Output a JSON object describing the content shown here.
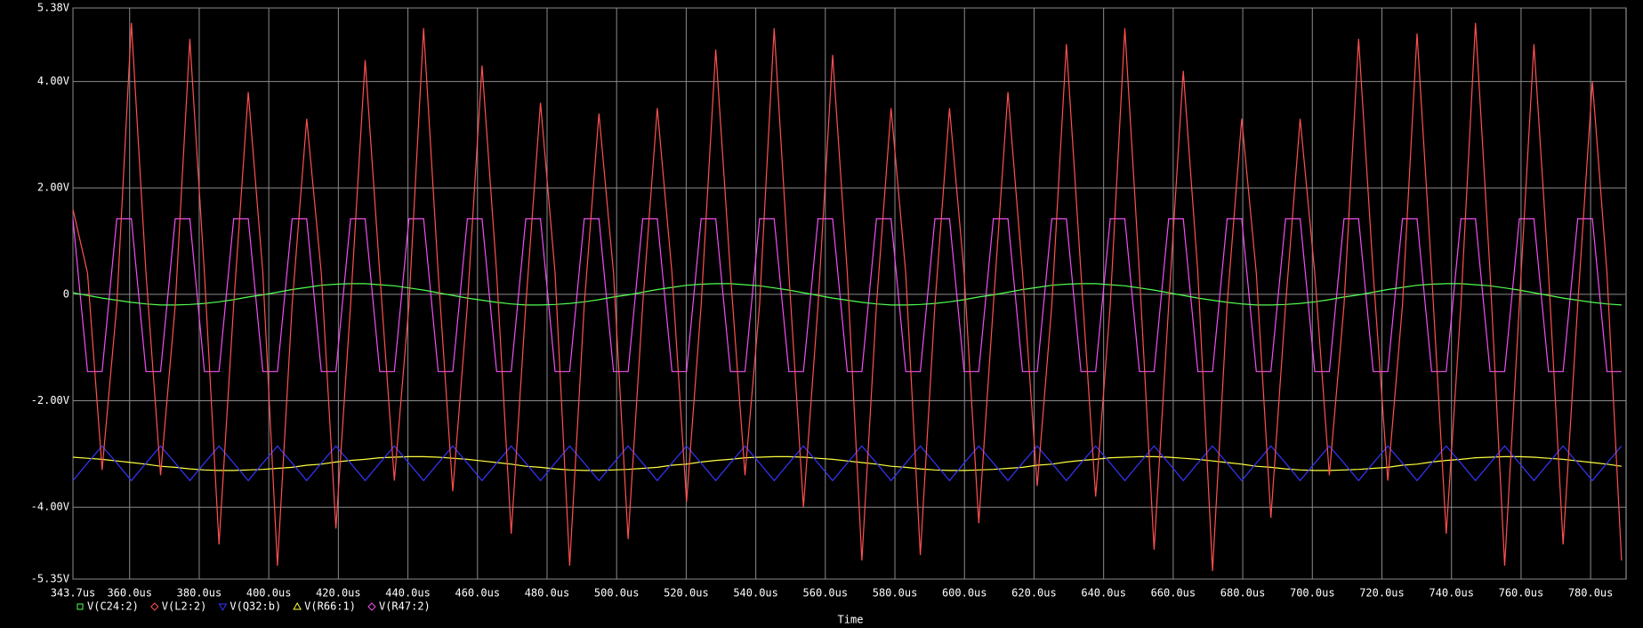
{
  "chart_data": {
    "type": "line",
    "x_label": "Time",
    "xlim": [
      343.7,
      790.2
    ],
    "ylim": [
      -5.35,
      5.38
    ],
    "xticks": [
      {
        "value": 343.7,
        "label": "343.7us"
      },
      {
        "value": 360,
        "label": "360.0us"
      },
      {
        "value": 380,
        "label": "380.0us"
      },
      {
        "value": 400,
        "label": "400.0us"
      },
      {
        "value": 420,
        "label": "420.0us"
      },
      {
        "value": 440,
        "label": "440.0us"
      },
      {
        "value": 460,
        "label": "460.0us"
      },
      {
        "value": 480,
        "label": "480.0us"
      },
      {
        "value": 500,
        "label": "500.0us"
      },
      {
        "value": 520,
        "label": "520.0us"
      },
      {
        "value": 540,
        "label": "540.0us"
      },
      {
        "value": 560,
        "label": "560.0us"
      },
      {
        "value": 580,
        "label": "580.0us"
      },
      {
        "value": 600,
        "label": "600.0us"
      },
      {
        "value": 620,
        "label": "620.0us"
      },
      {
        "value": 640,
        "label": "640.0us"
      },
      {
        "value": 660,
        "label": "660.0us"
      },
      {
        "value": 680,
        "label": "680.0us"
      },
      {
        "value": 700,
        "label": "700.0us"
      },
      {
        "value": 720,
        "label": "720.0us"
      },
      {
        "value": 740,
        "label": "740.0us"
      },
      {
        "value": 760,
        "label": "760.0us"
      },
      {
        "value": 780,
        "label": "780.0us"
      }
    ],
    "yticks": [
      {
        "value": 5.38,
        "label": "5.38V"
      },
      {
        "value": 4,
        "label": "4.00V"
      },
      {
        "value": 2,
        "label": "2.00V"
      },
      0,
      {
        "value": -2,
        "label": "-2.00V"
      },
      {
        "value": -4,
        "label": "-4.00V"
      },
      {
        "value": -5.35,
        "label": "-5.35V"
      }
    ],
    "grid": true,
    "x": [
      343.7,
      347.9,
      352.1,
      356.3,
      360.5,
      364.7,
      368.9,
      373.1,
      377.3,
      381.5,
      385.7,
      389.9,
      394.1,
      398.3,
      402.5,
      406.7,
      410.9,
      415.1,
      419.3,
      423.5,
      427.7,
      431.9,
      436.1,
      440.3,
      444.5,
      448.7,
      452.9,
      457.1,
      461.3,
      465.5,
      469.7,
      473.9,
      478.1,
      482.3,
      486.5,
      490.7,
      494.9,
      499.1,
      503.3,
      507.5,
      511.7,
      515.9,
      520.1,
      524.3,
      528.5,
      532.7,
      536.9,
      541.1,
      545.3,
      549.5,
      553.7,
      557.9,
      562.1,
      566.3,
      570.5,
      574.7,
      578.9,
      583.1,
      587.3,
      591.5,
      595.7,
      599.9,
      604.1,
      608.3,
      612.5,
      616.7,
      620.9,
      625.1,
      629.3,
      633.5,
      637.7,
      641.9,
      646.1,
      650.3,
      654.5,
      658.7,
      662.9,
      667.1,
      671.3,
      675.5,
      679.7,
      683.9,
      688.1,
      692.3,
      696.5,
      700.7,
      704.9,
      709.1,
      713.3,
      717.5,
      721.7,
      725.9,
      730.1,
      734.3,
      738.5,
      742.7,
      746.9,
      751.1,
      755.3,
      759.5,
      763.7,
      767.9,
      772.1,
      776.3,
      780.5,
      784.7,
      788.9
    ],
    "series": [
      {
        "name": "V(C24:2)",
        "color": "#50ff50",
        "values": [
          0.03,
          -0.02,
          -0.07,
          -0.11,
          -0.15,
          -0.18,
          -0.2,
          -0.2,
          -0.19,
          -0.17,
          -0.14,
          -0.1,
          -0.05,
          -0.01,
          0.04,
          0.09,
          0.13,
          0.17,
          0.19,
          0.2,
          0.2,
          0.18,
          0.16,
          0.12,
          0.08,
          0.03,
          -0.02,
          -0.07,
          -0.11,
          -0.15,
          -0.18,
          -0.2,
          -0.2,
          -0.19,
          -0.17,
          -0.14,
          -0.1,
          -0.05,
          -0.01,
          0.04,
          0.09,
          0.13,
          0.17,
          0.19,
          0.2,
          0.2,
          0.18,
          0.16,
          0.12,
          0.08,
          0.03,
          -0.02,
          -0.07,
          -0.11,
          -0.15,
          -0.18,
          -0.2,
          -0.2,
          -0.19,
          -0.17,
          -0.14,
          -0.1,
          -0.05,
          -0.01,
          0.04,
          0.09,
          0.13,
          0.17,
          0.19,
          0.2,
          0.2,
          0.18,
          0.16,
          0.12,
          0.08,
          0.03,
          -0.02,
          -0.07,
          -0.11,
          -0.15,
          -0.18,
          -0.2,
          -0.2,
          -0.19,
          -0.17,
          -0.14,
          -0.1,
          -0.05,
          -0.01,
          0.04,
          0.09,
          0.13,
          0.17,
          0.19,
          0.2,
          0.2,
          0.18,
          0.16,
          0.12,
          0.08,
          0.03,
          -0.02,
          -0.07,
          -0.11,
          -0.15,
          -0.18,
          -0.2
        ]
      },
      {
        "name": "V(L2:2)",
        "color": "#ff5050",
        "values": [
          1.6,
          0.4,
          -3.3,
          -0.2,
          5.1,
          0.4,
          -3.4,
          -0.2,
          4.8,
          0.4,
          -4.7,
          -0.2,
          3.8,
          0.4,
          -5.1,
          -0.2,
          3.3,
          0.4,
          -4.4,
          -0.2,
          4.4,
          0.4,
          -3.5,
          -0.2,
          5.0,
          0.4,
          -3.7,
          -0.2,
          4.3,
          0.4,
          -4.5,
          -0.2,
          3.6,
          0.4,
          -5.1,
          -0.2,
          3.4,
          0.4,
          -4.6,
          -0.2,
          3.5,
          0.4,
          -3.9,
          -0.2,
          4.6,
          0.4,
          -3.4,
          -0.2,
          5.0,
          0.4,
          -4.0,
          -0.2,
          4.5,
          0.4,
          -5.0,
          -0.2,
          3.5,
          0.4,
          -4.9,
          -0.2,
          3.5,
          0.4,
          -4.3,
          -0.2,
          3.8,
          0.4,
          -3.6,
          -0.2,
          4.7,
          0.4,
          -3.8,
          -0.2,
          5.0,
          0.4,
          -4.8,
          -0.2,
          4.2,
          0.4,
          -5.2,
          -0.2,
          3.3,
          0.4,
          -4.2,
          -0.2,
          3.3,
          0.4,
          -3.4,
          -0.2,
          4.8,
          0.4,
          -3.5,
          -0.2,
          4.9,
          0.4,
          -4.5,
          -0.2,
          5.1,
          0.4,
          -5.1,
          -0.2,
          4.7,
          0.4,
          -4.7,
          -0.2,
          4.0,
          0.4,
          -5.0
        ]
      },
      {
        "name": "V(Q32:b)",
        "color": "#3535ff",
        "values": [
          -3.5,
          -3.17,
          -2.85,
          -3.17,
          -3.5,
          -3.17,
          -2.85,
          -3.17,
          -3.5,
          -3.17,
          -2.85,
          -3.17,
          -3.5,
          -3.17,
          -2.85,
          -3.17,
          -3.5,
          -3.17,
          -2.85,
          -3.17,
          -3.5,
          -3.17,
          -2.85,
          -3.17,
          -3.5,
          -3.17,
          -2.85,
          -3.17,
          -3.5,
          -3.17,
          -2.85,
          -3.17,
          -3.5,
          -3.17,
          -2.85,
          -3.17,
          -3.5,
          -3.17,
          -2.85,
          -3.17,
          -3.5,
          -3.17,
          -2.85,
          -3.17,
          -3.5,
          -3.17,
          -2.85,
          -3.17,
          -3.5,
          -3.17,
          -2.85,
          -3.17,
          -3.5,
          -3.17,
          -2.85,
          -3.17,
          -3.5,
          -3.17,
          -2.85,
          -3.17,
          -3.5,
          -3.17,
          -2.85,
          -3.17,
          -3.5,
          -3.17,
          -2.85,
          -3.17,
          -3.5,
          -3.17,
          -2.85,
          -3.17,
          -3.5,
          -3.17,
          -2.85,
          -3.17,
          -3.5,
          -3.17,
          -2.85,
          -3.17,
          -3.5,
          -3.17,
          -2.85,
          -3.17,
          -3.5,
          -3.17,
          -2.85,
          -3.17,
          -3.5,
          -3.17,
          -2.85,
          -3.17,
          -3.5,
          -3.17,
          -2.85,
          -3.17,
          -3.5,
          -3.17,
          -2.85,
          -3.17,
          -3.5,
          -3.17,
          -2.85,
          -3.17,
          -3.5,
          -3.17,
          -2.85
        ]
      },
      {
        "name": "V(R66:1)",
        "color": "#ffff40",
        "values": [
          -3.06,
          -3.08,
          -3.1,
          -3.13,
          -3.16,
          -3.19,
          -3.23,
          -3.25,
          -3.28,
          -3.3,
          -3.31,
          -3.31,
          -3.3,
          -3.29,
          -3.27,
          -3.25,
          -3.21,
          -3.19,
          -3.15,
          -3.12,
          -3.1,
          -3.07,
          -3.06,
          -3.05,
          -3.05,
          -3.06,
          -3.08,
          -3.1,
          -3.13,
          -3.16,
          -3.19,
          -3.23,
          -3.25,
          -3.28,
          -3.3,
          -3.31,
          -3.31,
          -3.3,
          -3.29,
          -3.27,
          -3.25,
          -3.21,
          -3.19,
          -3.15,
          -3.12,
          -3.1,
          -3.07,
          -3.06,
          -3.05,
          -3.05,
          -3.06,
          -3.08,
          -3.1,
          -3.13,
          -3.16,
          -3.19,
          -3.23,
          -3.25,
          -3.28,
          -3.3,
          -3.31,
          -3.31,
          -3.3,
          -3.29,
          -3.27,
          -3.25,
          -3.21,
          -3.19,
          -3.15,
          -3.12,
          -3.1,
          -3.07,
          -3.06,
          -3.05,
          -3.05,
          -3.06,
          -3.08,
          -3.1,
          -3.13,
          -3.16,
          -3.19,
          -3.23,
          -3.25,
          -3.28,
          -3.3,
          -3.31,
          -3.31,
          -3.3,
          -3.29,
          -3.27,
          -3.25,
          -3.21,
          -3.19,
          -3.15,
          -3.12,
          -3.1,
          -3.07,
          -3.06,
          -3.05,
          -3.05,
          -3.06,
          -3.08,
          -3.1,
          -3.13,
          -3.16,
          -3.19,
          -3.23
        ]
      },
      {
        "name": "V(R47:2)",
        "color": "#f050f0",
        "values": [
          1.42,
          -1.45,
          -1.45,
          1.42,
          1.42,
          -1.45,
          -1.45,
          1.42,
          1.42,
          -1.45,
          -1.45,
          1.42,
          1.42,
          -1.45,
          -1.45,
          1.42,
          1.42,
          -1.45,
          -1.45,
          1.42,
          1.42,
          -1.45,
          -1.45,
          1.42,
          1.42,
          -1.45,
          -1.45,
          1.42,
          1.42,
          -1.45,
          -1.45,
          1.42,
          1.42,
          -1.45,
          -1.45,
          1.42,
          1.42,
          -1.45,
          -1.45,
          1.42,
          1.42,
          -1.45,
          -1.45,
          1.42,
          1.42,
          -1.45,
          -1.45,
          1.42,
          1.42,
          -1.45,
          -1.45,
          1.42,
          1.42,
          -1.45,
          -1.45,
          1.42,
          1.42,
          -1.45,
          -1.45,
          1.42,
          1.42,
          -1.45,
          -1.45,
          1.42,
          1.42,
          -1.45,
          -1.45,
          1.42,
          1.42,
          -1.45,
          -1.45,
          1.42,
          1.42,
          -1.45,
          -1.45,
          1.42,
          1.42,
          -1.45,
          -1.45,
          1.42,
          1.42,
          -1.45,
          -1.45,
          1.42,
          1.42,
          -1.45,
          -1.45,
          1.42,
          1.42,
          -1.45,
          -1.45,
          1.42,
          1.42,
          -1.45,
          -1.45,
          1.42,
          1.42,
          -1.45,
          -1.45,
          1.42,
          1.42,
          -1.45,
          -1.45,
          1.42,
          1.42,
          -1.45,
          -1.45
        ]
      }
    ]
  }
}
